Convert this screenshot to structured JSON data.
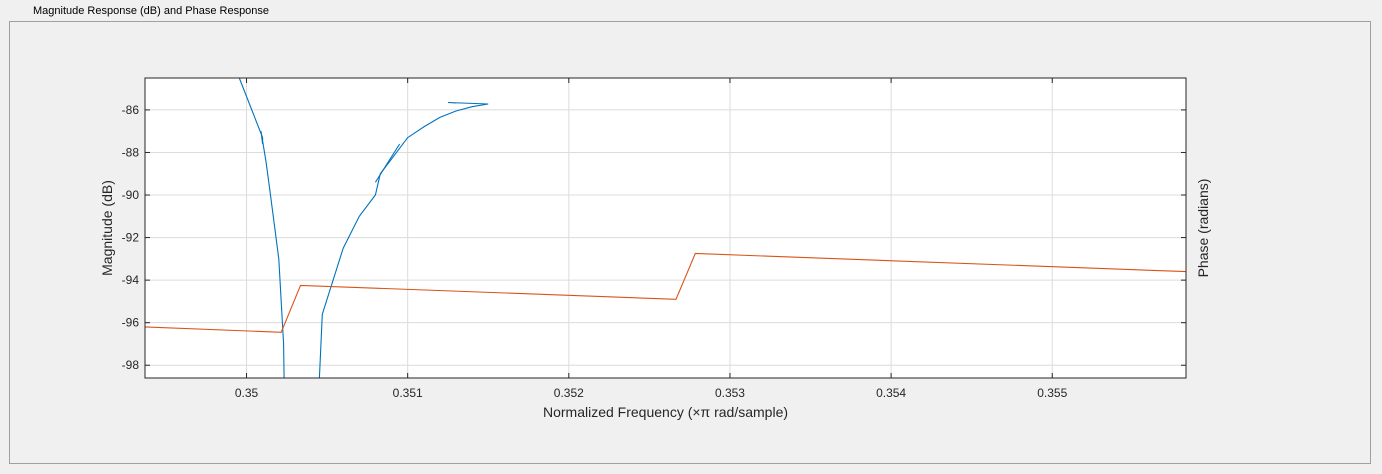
{
  "panel": {
    "title": "Magnitude Response (dB) and Phase Response"
  },
  "colors": {
    "magnitude": "#0072bd",
    "phase": "#d95319",
    "grid": "#dcdcdc",
    "axis": "#262626"
  },
  "chart_data": {
    "type": "line",
    "title": "",
    "xlabel": "Normalized Frequency (×π rad/sample)",
    "ylabel": "Magnitude (dB)",
    "ylabel_right": "Phase (radians)",
    "xlim": [
      0.34937,
      0.35583
    ],
    "ylim": [
      -98.6,
      -84.5
    ],
    "x_ticks": [
      0.35,
      0.351,
      0.352,
      0.353,
      0.354,
      0.355
    ],
    "x_tick_labels": [
      "0.35",
      "0.351",
      "0.352",
      "0.353",
      "0.354",
      "0.355"
    ],
    "y_ticks": [
      -86,
      -88,
      -90,
      -92,
      -94,
      -96,
      -98
    ],
    "y_tick_labels": [
      "-86",
      "-88",
      "-90",
      "-92",
      "-94",
      "-96",
      "-98"
    ],
    "grid": true,
    "series": [
      {
        "kind": "magnitude",
        "color": "#0072bd",
        "segments": [
          [
            [
              0.349955,
              -84.5
            ],
            [
              0.3501,
              -87.3
            ],
            [
              0.3501,
              -87.6
            ],
            [
              0.35009,
              -87.0
            ],
            [
              0.35012,
              -88.4
            ],
            [
              0.35014,
              -89.5
            ],
            [
              0.3502,
              -93.0
            ],
            [
              0.35023,
              -97.0
            ],
            [
              0.350233,
              -98.6
            ]
          ],
          [
            [
              0.350452,
              -98.6
            ],
            [
              0.35047,
              -95.6
            ],
            [
              0.3506,
              -92.5
            ],
            [
              0.3507,
              -91.0
            ],
            [
              0.3508,
              -90.0
            ],
            [
              0.35083,
              -89.0
            ],
            [
              0.3509,
              -88.3
            ],
            [
              0.351,
              -87.3
            ],
            [
              0.3511,
              -86.8
            ],
            [
              0.3512,
              -86.35
            ],
            [
              0.3513,
              -86.05
            ],
            [
              0.3514,
              -85.85
            ],
            [
              0.3515,
              -85.72
            ],
            [
              0.35125,
              -85.65
            ],
            [
              0.3513,
              -85.67
            ]
          ],
          [
            [
              0.3508,
              -89.4
            ],
            [
              0.35095,
              -87.6
            ]
          ]
        ]
      },
      {
        "kind": "phase",
        "color": "#d95319",
        "segments": [
          [
            [
              0.34937,
              -96.2
            ],
            [
              0.350215,
              -96.45
            ],
            [
              0.350335,
              -94.25
            ],
            [
              0.352665,
              -94.9
            ],
            [
              0.352785,
              -92.75
            ],
            [
              0.35583,
              -93.6
            ]
          ]
        ]
      }
    ]
  }
}
